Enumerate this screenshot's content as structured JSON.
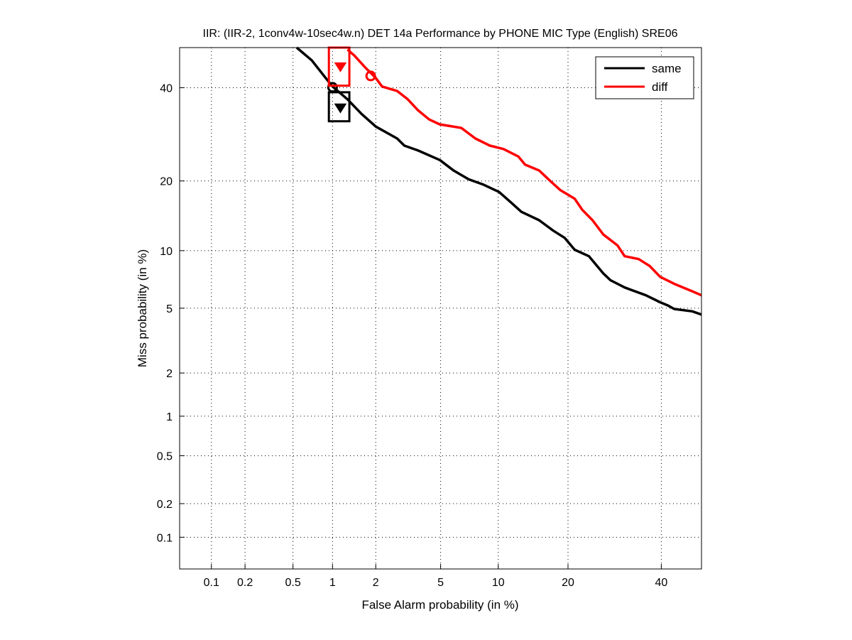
{
  "chart_data": {
    "type": "line",
    "title": "IIR: (IIR-2, 1conv4w-10sec4w.n) DET 14a Performance by PHONE MIC Type (English) SRE06",
    "xlabel": "False Alarm probability (in %)",
    "ylabel": "Miss probability (in %)",
    "scale": "normal-deviate",
    "xlim": [
      0.05,
      50
    ],
    "ylim": [
      0.05,
      50
    ],
    "grid": true,
    "legend_position": "top-right",
    "xticks": [
      0.1,
      0.2,
      0.5,
      1,
      2,
      5,
      10,
      20,
      40
    ],
    "xtick_labels": [
      "0.1",
      "0.2",
      "0.5",
      "1",
      "2",
      "5",
      "10",
      "20",
      "40"
    ],
    "yticks": [
      0.1,
      0.2,
      0.5,
      1,
      2,
      5,
      10,
      20,
      40
    ],
    "ytick_labels": [
      "0.1",
      "0.2",
      "0.5",
      "1",
      "2",
      "5",
      "10",
      "20",
      "40"
    ],
    "series": [
      {
        "name": "same",
        "color": "#000000",
        "x": [
          0.535,
          0.7,
          0.89,
          1.0,
          1.28,
          1.6,
          2.0,
          2.75,
          3.05,
          3.7,
          4.95,
          5.9,
          7.1,
          8.4,
          10.1,
          11.5,
          12.8,
          15.3,
          17.5,
          19.4,
          21.2,
          23.9,
          26.8,
          28.3,
          31.4,
          36.3,
          39.7,
          41.5,
          43.2,
          47.7,
          50
        ],
        "y": [
          50,
          46.8,
          42.4,
          40.3,
          37.2,
          33.8,
          30.9,
          28.3,
          26.8,
          25.8,
          23.9,
          21.9,
          20.3,
          19.4,
          18.1,
          16.4,
          15.0,
          13.8,
          12.4,
          11.5,
          10.1,
          9.4,
          7.7,
          7.1,
          6.5,
          5.9,
          5.4,
          5.2,
          4.95,
          4.8,
          4.6
        ],
        "min_dcf_point": {
          "x": 1.0,
          "y": 40.1
        },
        "act_dcf_point": {
          "x": 1.14,
          "y": 35.2
        },
        "confidence_box": {
          "x": [
            0.94,
            1.32
          ],
          "y": [
            32.1,
            38.9
          ]
        }
      },
      {
        "name": "diff",
        "color": "#ff0000",
        "x": [
          1.28,
          1.43,
          1.7,
          2.0,
          2.2,
          2.75,
          3.2,
          3.7,
          4.3,
          4.95,
          6.5,
          7.7,
          9.1,
          10.6,
          12.4,
          13.3,
          15.3,
          17.0,
          18.7,
          21.2,
          22.6,
          24.6,
          26.8,
          29.8,
          31.4,
          34.6,
          37.2,
          39.7,
          43.2,
          47.7,
          50
        ],
        "y": [
          49.5,
          48.0,
          45.0,
          42.4,
          40.3,
          39.2,
          37.2,
          34.6,
          32.5,
          31.4,
          30.6,
          28.3,
          26.8,
          26.1,
          24.6,
          23.0,
          21.9,
          20.0,
          18.4,
          17.0,
          15.3,
          13.8,
          11.9,
          10.6,
          9.4,
          9.1,
          8.4,
          7.4,
          6.8,
          6.2,
          5.9
        ],
        "min_dcf_point": {
          "x": 1.85,
          "y": 42.9
        },
        "act_dcf_point": {
          "x": 1.14,
          "y": 45.2
        },
        "confidence_box": {
          "x": [
            0.94,
            1.32
          ],
          "y": [
            40.5,
            50
          ]
        }
      }
    ]
  }
}
